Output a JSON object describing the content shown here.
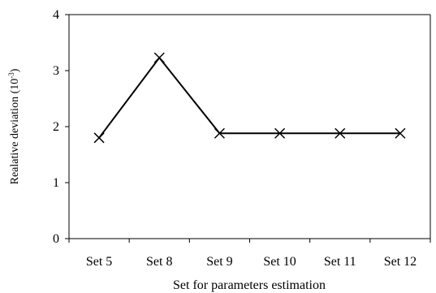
{
  "chart_data": {
    "type": "line",
    "categories": [
      "Set 5",
      "Set 8",
      "Set 9",
      "Set 10",
      "Set 11",
      "Set 12"
    ],
    "series": [
      {
        "values": [
          1.8,
          3.23,
          1.88,
          1.88,
          1.88,
          1.88
        ]
      }
    ],
    "xlabel": "Set for parameters estimation",
    "ylabel_main": "Realative deviation (10",
    "ylabel_sup": "-3",
    "ylabel_close": ")",
    "ylim": [
      0,
      4
    ],
    "yticks": [
      "0",
      "1",
      "2",
      "3",
      "4"
    ],
    "grid": false,
    "marker": "x",
    "line_color": "#000000"
  }
}
